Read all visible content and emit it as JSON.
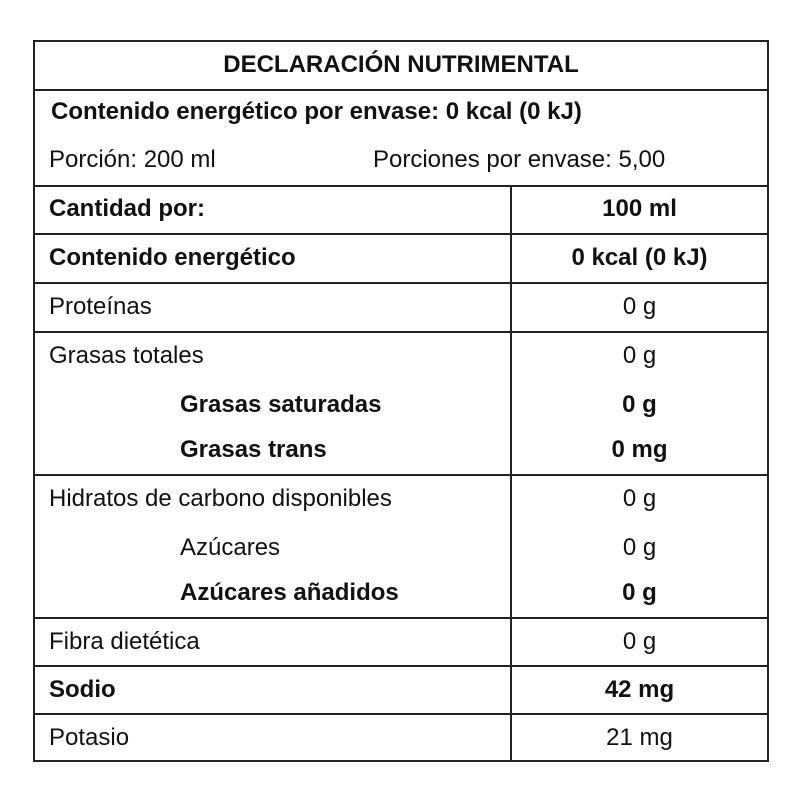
{
  "title": "DECLARACIÓN NUTRIMENTAL",
  "energy_per_package": "Contenido energético por envase: 0 kcal (0 kJ)",
  "portion": "Porción: 200 ml",
  "portions_per_package": "Porciones por envase: 5,00",
  "header": {
    "label": "Cantidad por:",
    "value": "100 ml"
  },
  "rows": [
    {
      "label": "Contenido energético",
      "value": "0 kcal (0 kJ)"
    },
    {
      "label": "Proteínas",
      "value": "0 g"
    },
    {
      "label": "Grasas totales",
      "value": "0 g"
    },
    {
      "label": "Grasas saturadas",
      "value": "0 g"
    },
    {
      "label": "Grasas trans",
      "value": "0 mg"
    },
    {
      "label": "Hidratos de carbono disponibles",
      "value": "0 g"
    },
    {
      "label": "Azúcares",
      "value": "0 g"
    },
    {
      "label": "Azúcares añadidos",
      "value": "0 g"
    },
    {
      "label": "Fibra dietética",
      "value": "0 g"
    },
    {
      "label": "Sodio",
      "value": "42 mg"
    },
    {
      "label": "Potasio",
      "value": "21 mg"
    }
  ]
}
